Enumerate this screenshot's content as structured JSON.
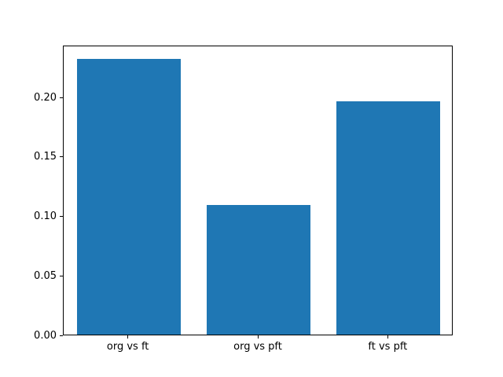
{
  "chart_data": {
    "type": "bar",
    "title": "",
    "xlabel": "",
    "ylabel": "",
    "categories": [
      "org vs ft",
      "org vs pft",
      "ft vs pft"
    ],
    "values": [
      0.232,
      0.109,
      0.196
    ],
    "yticks": [
      0.0,
      0.05,
      0.1,
      0.15,
      0.2
    ],
    "ytick_labels": [
      "0.00",
      "0.05",
      "0.10",
      "0.15",
      "0.20"
    ],
    "ylim": [
      0,
      0.2436
    ],
    "bar_width_fraction": 0.8,
    "bar_color": "#1f77b4",
    "grid": false,
    "legend": null
  }
}
